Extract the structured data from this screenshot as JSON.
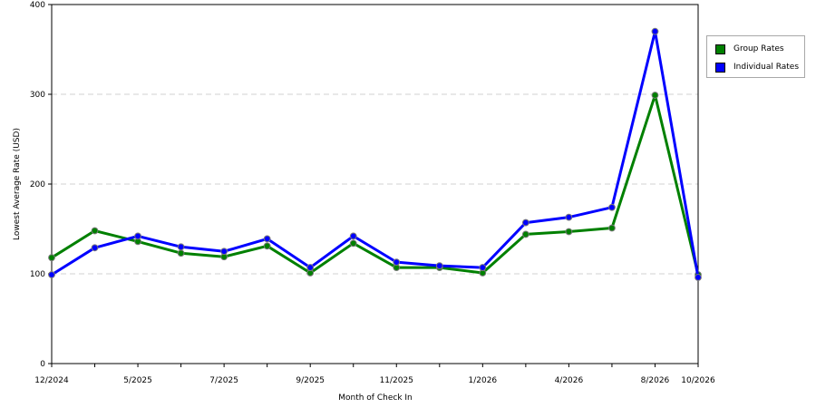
{
  "chart_data": {
    "type": "line",
    "xlabel": "Month of Check In",
    "ylabel": "Lowest Average Rate (USD)",
    "ylim": [
      0,
      400
    ],
    "yticks": [
      "0",
      "100",
      "200",
      "300",
      "400"
    ],
    "xticks": [
      "12/2024",
      "5/2025",
      "7/2025",
      "9/2025",
      "11/2025",
      "1/2026",
      "4/2026",
      "8/2026",
      "10/2026"
    ],
    "grid": "horizontal dashed",
    "legend_position": "right",
    "series": [
      {
        "name": "Group Rates",
        "color": "#008000",
        "values": [
          118,
          148,
          136,
          123,
          119,
          131,
          101,
          134,
          107,
          107,
          101,
          144,
          147,
          151,
          299,
          99
        ]
      },
      {
        "name": "Individual Rates",
        "color": "#0000ff",
        "values": [
          99,
          129,
          142,
          130,
          125,
          139,
          107,
          142,
          113,
          109,
          107,
          157,
          163,
          174,
          370,
          96
        ]
      }
    ]
  }
}
